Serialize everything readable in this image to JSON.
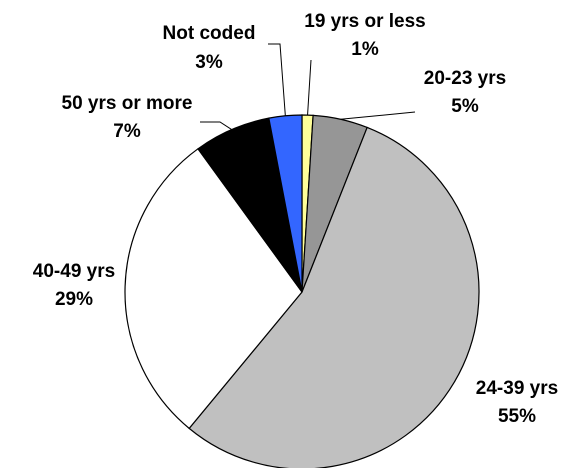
{
  "chart_data": {
    "type": "pie",
    "title": "",
    "start_angle_deg": 0,
    "direction": "clockwise",
    "slices": [
      {
        "label": "19 yrs or less",
        "percent_label": "1%",
        "value": 1,
        "color": "#ffff99"
      },
      {
        "label": "20-23 yrs",
        "percent_label": "5%",
        "value": 5,
        "color": "#969696"
      },
      {
        "label": "24-39 yrs",
        "percent_label": "55%",
        "value": 55,
        "color": "#c0c0c0"
      },
      {
        "label": "40-49 yrs",
        "percent_label": "29%",
        "value": 29,
        "color": "#ffffff"
      },
      {
        "label": "50 yrs or more",
        "percent_label": "7%",
        "value": 7,
        "color": "#000000"
      },
      {
        "label": "Not coded",
        "percent_label": "3%",
        "value": 3,
        "color": "#3366ff"
      }
    ]
  }
}
